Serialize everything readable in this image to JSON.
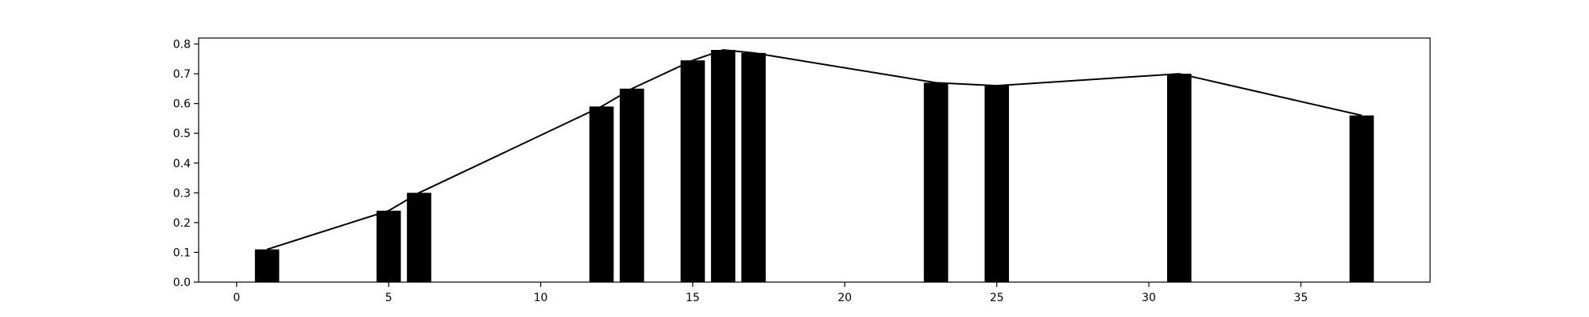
{
  "chart_data": {
    "type": "bar",
    "x": [
      1,
      5,
      6,
      12,
      13,
      15,
      16,
      17,
      23,
      25,
      31,
      37
    ],
    "series": [
      {
        "values": [
          0.11,
          0.24,
          0.3,
          0.59,
          0.65,
          0.745,
          0.78,
          0.77,
          0.67,
          0.66,
          0.7,
          0.56
        ]
      }
    ],
    "overlay_line": {
      "x": [
        1,
        5,
        6,
        12,
        13,
        15,
        16,
        17,
        23,
        25,
        31,
        37
      ],
      "values": [
        0.11,
        0.24,
        0.3,
        0.59,
        0.65,
        0.745,
        0.78,
        0.77,
        0.67,
        0.66,
        0.7,
        0.56
      ]
    },
    "bar_width": 0.8,
    "title": "",
    "xlabel": "",
    "ylabel": "",
    "xlim": [
      -1.25,
      39.25
    ],
    "ylim": [
      0,
      0.82
    ],
    "xticks": [
      0,
      5,
      10,
      15,
      20,
      25,
      30,
      35
    ],
    "yticks": [
      0.0,
      0.1,
      0.2,
      0.3,
      0.4,
      0.5,
      0.6,
      0.7,
      0.8
    ],
    "grid": false,
    "legend": "none",
    "colors": {
      "bars": "#000000",
      "line": "#000000"
    }
  }
}
